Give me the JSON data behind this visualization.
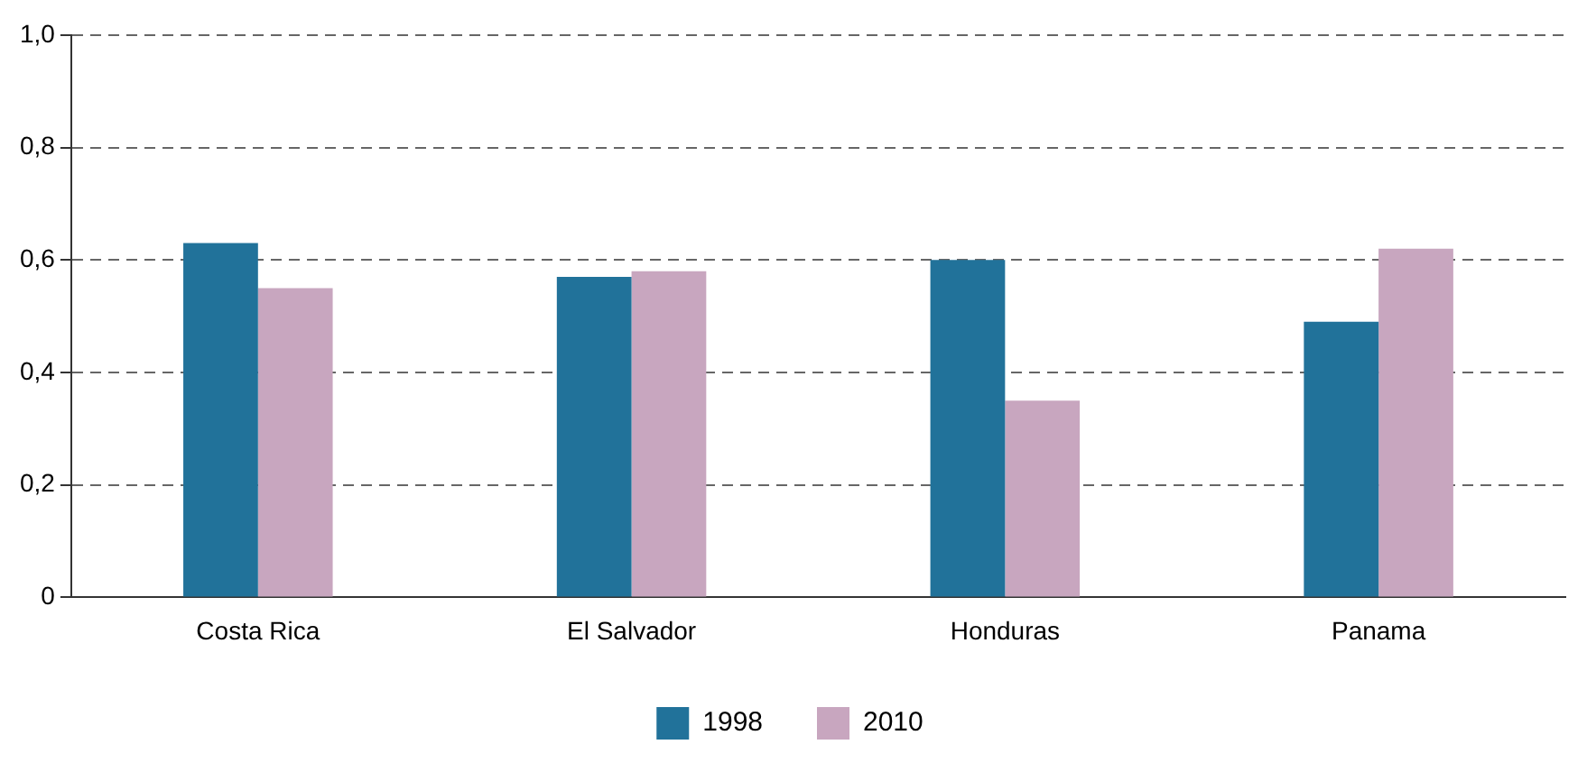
{
  "chart_data": {
    "type": "bar",
    "categories": [
      "Costa Rica",
      "El Salvador",
      "Honduras",
      "Panama"
    ],
    "series": [
      {
        "name": "1998",
        "color": "#21729a",
        "values": [
          0.63,
          0.57,
          0.6,
          0.49
        ]
      },
      {
        "name": "2010",
        "color": "#c8a6bf",
        "values": [
          0.55,
          0.58,
          0.35,
          0.62
        ]
      }
    ],
    "ylim": [
      0,
      1
    ],
    "yticks": [
      0,
      {
        "value": 0.2,
        "label": "0,2"
      },
      {
        "value": 0.4,
        "label": "0,4"
      },
      {
        "value": 0.6,
        "label": "0,6"
      },
      {
        "value": 0.8,
        "label": "0,8"
      },
      {
        "value": 1,
        "label": "1,0"
      }
    ],
    "grid": "y",
    "legend": "bottom"
  }
}
